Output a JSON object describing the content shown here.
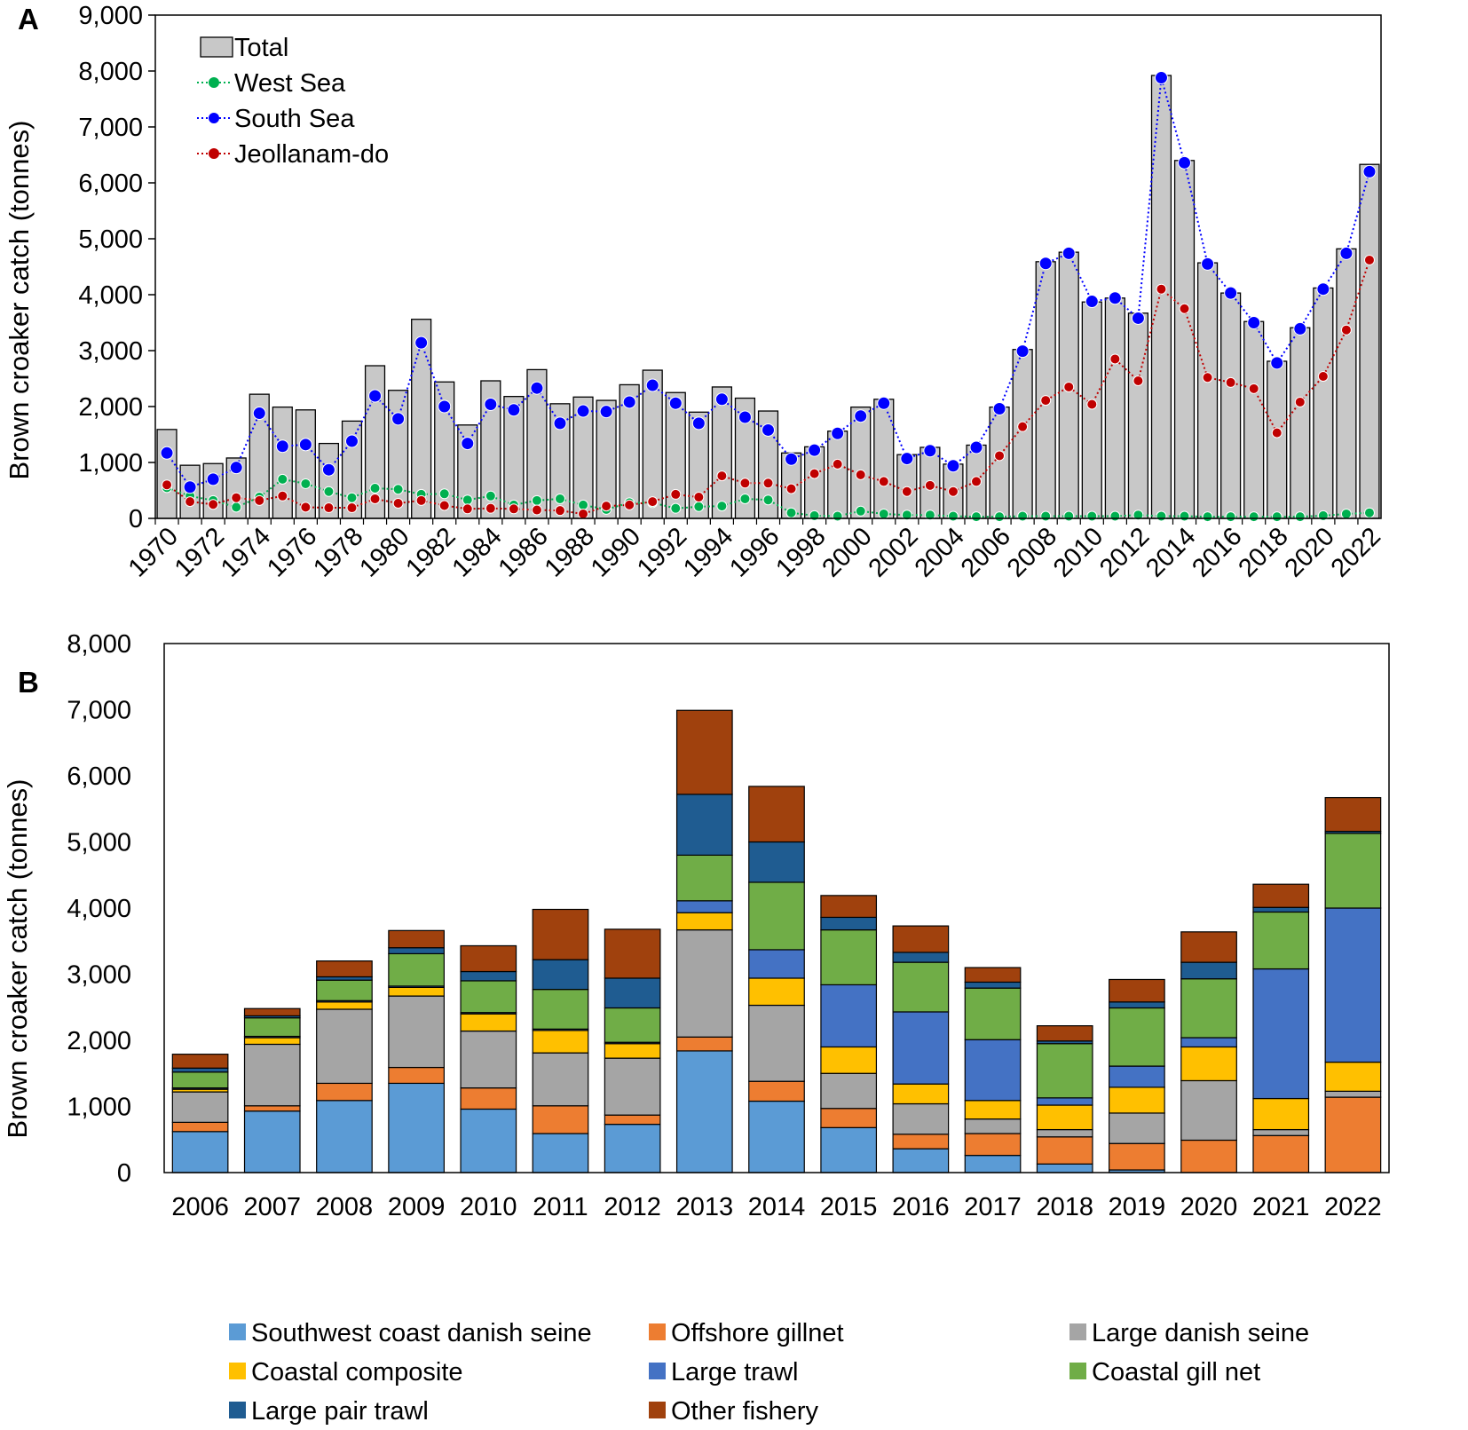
{
  "chart_data": [
    {
      "panel": "A",
      "type": "bar",
      "ylabel": "Brown croaker catch (tonnes)",
      "ylim": [
        0,
        9000
      ],
      "yticks": [
        0,
        1000,
        2000,
        3000,
        4000,
        5000,
        6000,
        7000,
        8000,
        9000
      ],
      "ytick_labels": [
        "0",
        "1,000",
        "2,000",
        "3,000",
        "4,000",
        "5,000",
        "6,000",
        "7,000",
        "8,000",
        "9,000"
      ],
      "xtick_labels": [
        "1970",
        "1972",
        "1974",
        "1976",
        "1978",
        "1980",
        "1982",
        "1984",
        "1986",
        "1988",
        "1990",
        "1992",
        "1994",
        "1996",
        "1998",
        "2000",
        "2002",
        "2004",
        "2006",
        "2008",
        "2010",
        "2012",
        "2014",
        "2016",
        "2018",
        "2020",
        "2022"
      ],
      "legend_position": "top-left",
      "categories": [
        1970,
        1971,
        1972,
        1973,
        1974,
        1975,
        1976,
        1977,
        1978,
        1979,
        1980,
        1981,
        1982,
        1983,
        1984,
        1985,
        1986,
        1987,
        1988,
        1989,
        1990,
        1991,
        1992,
        1993,
        1994,
        1995,
        1996,
        1997,
        1998,
        1999,
        2000,
        2001,
        2002,
        2003,
        2004,
        2005,
        2006,
        2007,
        2008,
        2009,
        2010,
        2011,
        2012,
        2013,
        2014,
        2015,
        2016,
        2017,
        2018,
        2019,
        2020,
        2021,
        2022
      ],
      "series": [
        {
          "name": "Total",
          "kind": "bar",
          "color": "#c8c8c8",
          "values": [
            1590,
            950,
            980,
            1080,
            2220,
            1990,
            1940,
            1340,
            1740,
            2730,
            2290,
            3560,
            2440,
            1670,
            2460,
            2180,
            2660,
            2050,
            2170,
            2110,
            2390,
            2650,
            2250,
            1900,
            2350,
            2150,
            1920,
            1170,
            1280,
            1560,
            1990,
            2130,
            1140,
            1270,
            970,
            1310,
            1990,
            3020,
            4590,
            4760,
            3870,
            3940,
            3670,
            7920,
            6400,
            4570,
            4030,
            3520,
            2810,
            3410,
            4120,
            4820,
            6330
          ]
        },
        {
          "name": "West Sea",
          "kind": "line",
          "color": "#00b050",
          "values": [
            550,
            400,
            320,
            200,
            380,
            700,
            620,
            480,
            370,
            540,
            520,
            430,
            440,
            330,
            400,
            240,
            320,
            350,
            240,
            160,
            280,
            280,
            180,
            210,
            220,
            350,
            330,
            100,
            50,
            40,
            130,
            80,
            60,
            60,
            40,
            30,
            30,
            40,
            40,
            40,
            40,
            40,
            60,
            40,
            40,
            30,
            30,
            30,
            30,
            30,
            50,
            80,
            100
          ]
        },
        {
          "name": "South Sea",
          "kind": "line",
          "color": "#0000ff",
          "values": [
            1170,
            560,
            700,
            910,
            1880,
            1290,
            1320,
            870,
            1380,
            2190,
            1780,
            3140,
            2000,
            1340,
            2040,
            1940,
            2330,
            1700,
            1920,
            1910,
            2080,
            2380,
            2060,
            1700,
            2130,
            1810,
            1580,
            1060,
            1220,
            1520,
            1830,
            2060,
            1070,
            1210,
            940,
            1270,
            1960,
            2990,
            4560,
            4740,
            3880,
            3940,
            3580,
            7880,
            6360,
            4550,
            4030,
            3500,
            2780,
            3390,
            4100,
            4740,
            6200
          ]
        },
        {
          "name": "Jeollanam-do",
          "kind": "line",
          "color": "#c00000",
          "values": [
            600,
            300,
            250,
            370,
            320,
            400,
            200,
            190,
            190,
            350,
            270,
            320,
            230,
            170,
            180,
            170,
            150,
            140,
            80,
            220,
            240,
            300,
            430,
            380,
            760,
            630,
            630,
            530,
            800,
            970,
            780,
            660,
            480,
            590,
            480,
            660,
            1120,
            1640,
            2110,
            2350,
            2040,
            2850,
            2460,
            4100,
            3750,
            2520,
            2430,
            2320,
            1530,
            2080,
            2540,
            3370,
            4620
          ]
        }
      ]
    },
    {
      "panel": "B",
      "type": "bar",
      "stacked": true,
      "ylabel": "Brown croaker catch (tonnes)",
      "ylim": [
        0,
        8000
      ],
      "yticks": [
        0,
        1000,
        2000,
        3000,
        4000,
        5000,
        6000,
        7000,
        8000
      ],
      "ytick_labels": [
        "0",
        "1,000",
        "2,000",
        "3,000",
        "4,000",
        "5,000",
        "6,000",
        "7,000",
        "8,000"
      ],
      "categories": [
        "2006",
        "2007",
        "2008",
        "2009",
        "2010",
        "2011",
        "2012",
        "2013",
        "2014",
        "2015",
        "2016",
        "2017",
        "2018",
        "2019",
        "2020",
        "2021",
        "2022"
      ],
      "legend_position": "bottom",
      "series": [
        {
          "name": "Southwest coast danish seine",
          "color": "#5b9bd5",
          "values": [
            620,
            930,
            1090,
            1350,
            960,
            590,
            730,
            1840,
            1080,
            680,
            360,
            260,
            130,
            40,
            0,
            0,
            0
          ]
        },
        {
          "name": "Offshore gillnet",
          "color": "#ed7d31",
          "values": [
            140,
            80,
            260,
            240,
            320,
            420,
            140,
            210,
            300,
            290,
            220,
            330,
            410,
            400,
            490,
            560,
            1140
          ]
        },
        {
          "name": "Large danish seine",
          "color": "#a5a5a5",
          "values": [
            460,
            930,
            1120,
            1080,
            860,
            800,
            860,
            1620,
            1150,
            530,
            460,
            220,
            110,
            460,
            900,
            90,
            90
          ]
        },
        {
          "name": "Coastal composite",
          "color": "#ffc000",
          "values": [
            40,
            100,
            110,
            130,
            260,
            340,
            220,
            260,
            410,
            400,
            300,
            280,
            370,
            390,
            510,
            470,
            440
          ]
        },
        {
          "name": "Large trawl",
          "color": "#4472c4",
          "values": [
            20,
            20,
            20,
            20,
            20,
            20,
            20,
            180,
            430,
            940,
            1090,
            920,
            110,
            320,
            140,
            1960,
            2330
          ]
        },
        {
          "name": "Coastal gill net",
          "color": "#70ad47",
          "values": [
            240,
            280,
            310,
            490,
            480,
            600,
            520,
            690,
            1020,
            830,
            750,
            780,
            820,
            880,
            890,
            860,
            1130
          ]
        },
        {
          "name": "Large pair trawl",
          "color": "#1f5c91",
          "values": [
            60,
            30,
            50,
            90,
            140,
            450,
            450,
            920,
            610,
            190,
            150,
            90,
            40,
            90,
            250,
            70,
            30
          ]
        },
        {
          "name": "Other fishery",
          "color": "#a0410d",
          "values": [
            210,
            110,
            240,
            260,
            390,
            760,
            740,
            1270,
            840,
            330,
            400,
            220,
            230,
            340,
            460,
            350,
            510
          ]
        }
      ]
    }
  ]
}
